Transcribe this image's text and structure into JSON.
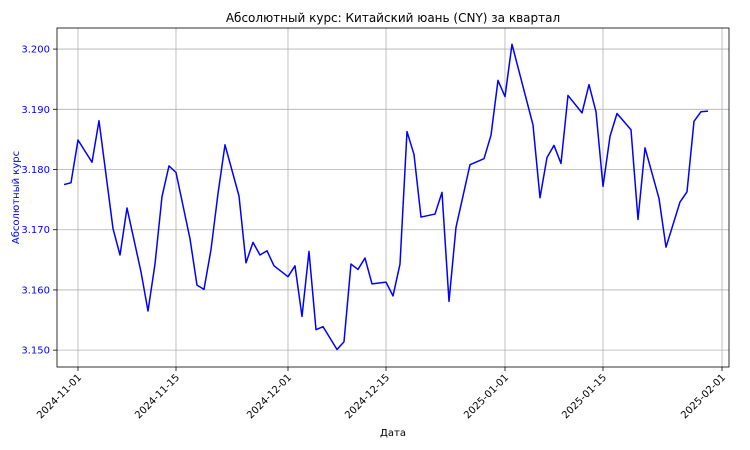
{
  "chart_data": {
    "type": "line",
    "title": "Абсолютный курс: Китайский юань (CNY) за квартал",
    "xlabel": "Дата",
    "ylabel": "Абсолютный курс",
    "ylim": [
      3.1472,
      3.2035
    ],
    "xlim": [
      "2024-10-29",
      "2025-02-02"
    ],
    "grid": true,
    "y_ticks": [
      "3.150",
      "3.160",
      "3.170",
      "3.180",
      "3.190",
      "3.200"
    ],
    "x_ticks": [
      "2024-11-01",
      "2024-11-15",
      "2024-12-01",
      "2024-12-15",
      "2025-01-01",
      "2025-01-15",
      "2025-02-01"
    ],
    "colors": {
      "line": "#0000ff",
      "ylabel": "#0000ff",
      "y_ticks": "#0000ff",
      "grid": "#b0b0b0"
    },
    "series": [
      {
        "x": [
          "2024-10-30",
          "2024-10-31",
          "2024-11-01",
          "2024-11-03",
          "2024-11-04",
          "2024-11-06",
          "2024-11-07",
          "2024-11-08",
          "2024-11-10",
          "2024-11-11",
          "2024-11-12",
          "2024-11-13",
          "2024-11-14",
          "2024-11-15",
          "2024-11-17",
          "2024-11-18",
          "2024-11-19",
          "2024-11-20",
          "2024-11-21",
          "2024-11-22",
          "2024-11-24",
          "2024-11-25",
          "2024-11-26",
          "2024-11-27",
          "2024-11-28",
          "2024-11-29",
          "2024-12-01",
          "2024-12-02",
          "2024-12-03",
          "2024-12-04",
          "2024-12-05",
          "2024-12-06",
          "2024-12-08",
          "2024-12-09",
          "2024-12-10",
          "2024-12-11",
          "2024-12-12",
          "2024-12-13",
          "2024-12-15",
          "2024-12-16",
          "2024-12-17",
          "2024-12-18",
          "2024-12-19",
          "2024-12-20",
          "2024-12-22",
          "2024-12-23",
          "2024-12-24",
          "2024-12-25",
          "2024-12-27",
          "2024-12-29",
          "2024-12-30",
          "2024-12-31",
          "2025-01-01",
          "2025-01-02",
          "2025-01-05",
          "2025-01-06",
          "2025-01-07",
          "2025-01-08",
          "2025-01-09",
          "2025-01-10",
          "2025-01-12",
          "2025-01-13",
          "2025-01-14",
          "2025-01-15",
          "2025-01-16",
          "2025-01-17",
          "2025-01-19",
          "2025-01-20",
          "2025-01-21",
          "2025-01-23",
          "2025-01-24",
          "2025-01-26",
          "2025-01-27",
          "2025-01-28",
          "2025-01-29",
          "2025-01-30"
        ],
        "values": [
          3.1775,
          3.1778,
          3.1849,
          3.1812,
          3.1881,
          3.1702,
          3.1658,
          3.1736,
          3.163,
          3.1565,
          3.1643,
          3.1755,
          3.1806,
          3.1795,
          3.1685,
          3.1608,
          3.1601,
          3.1667,
          3.176,
          3.1841,
          3.1756,
          3.1645,
          3.1679,
          3.1658,
          3.1665,
          3.164,
          3.1622,
          3.164,
          3.1556,
          3.1664,
          3.1534,
          3.1539,
          3.1501,
          3.1514,
          3.1643,
          3.1634,
          3.1653,
          3.161,
          3.1613,
          3.159,
          3.1643,
          3.1863,
          3.1825,
          3.1721,
          3.1726,
          3.1762,
          3.1581,
          3.1704,
          3.1808,
          3.1818,
          3.1857,
          3.1948,
          3.1921,
          3.2008,
          3.1874,
          3.1753,
          3.182,
          3.184,
          3.181,
          3.1923,
          3.1894,
          3.1941,
          3.1896,
          3.1772,
          3.1855,
          3.1893,
          3.1866,
          3.1717,
          3.1836,
          3.1752,
          3.1671,
          3.1746,
          3.1763,
          3.188,
          3.1896,
          3.1897
        ]
      }
    ]
  }
}
